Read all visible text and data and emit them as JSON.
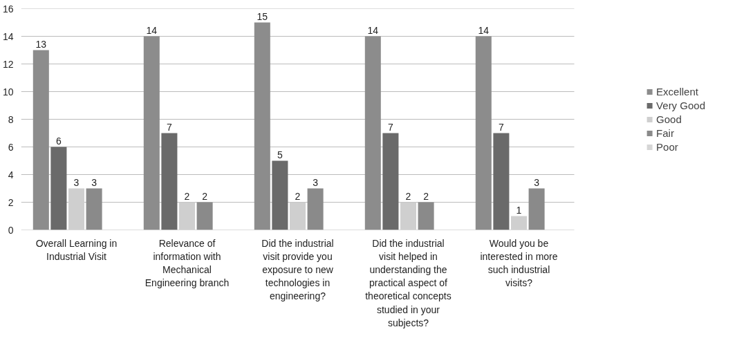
{
  "chart_data": {
    "type": "bar",
    "categories": [
      "Overall Learning in Industrial Visit",
      "Relevance of information with Mechanical Engineering branch",
      "Did the industrial visit provide you exposure to new technologies in engineering?",
      "Did the industrial visit helped in understanding the practical aspect of theoretical concepts studied in your subjects?",
      "Would you be interested in more such industrial visits?"
    ],
    "series": [
      {
        "name": "Excellent",
        "color": "#8c8c8c",
        "values": [
          13,
          14,
          15,
          14,
          14
        ],
        "value_labels": [
          "13",
          "14",
          "15",
          "14",
          "14"
        ]
      },
      {
        "name": "Very Good",
        "color": "#6a6a6a",
        "values": [
          6,
          7,
          5,
          7,
          7
        ],
        "value_labels": [
          "6",
          "7",
          "5",
          "7",
          "7"
        ]
      },
      {
        "name": "Good",
        "color": "#cfcfcf",
        "values": [
          3,
          2,
          2,
          2,
          1
        ],
        "value_labels": [
          "3",
          "2",
          "2",
          "2",
          "1"
        ]
      },
      {
        "name": "Fair",
        "color": "#8a8a8a",
        "values": [
          3,
          2,
          3,
          2,
          3
        ],
        "value_labels": [
          "3",
          "2",
          "3",
          "2",
          "3"
        ]
      },
      {
        "name": "Poor",
        "color": "#d6d6d6",
        "values": [
          0,
          0,
          0,
          0,
          0
        ],
        "value_labels": [
          null,
          null,
          null,
          null,
          null
        ]
      }
    ],
    "ylim": [
      0,
      16
    ],
    "yticks": [
      0,
      2,
      4,
      6,
      8,
      10,
      12,
      14,
      16
    ],
    "grid": "y",
    "legend": "right"
  }
}
